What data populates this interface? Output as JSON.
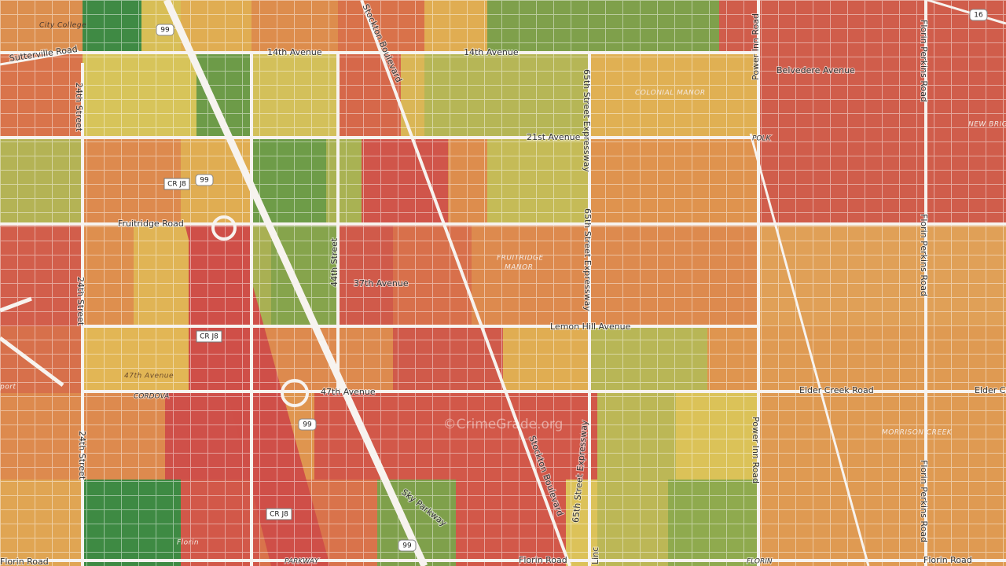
{
  "labels": {
    "city_college": "City College",
    "sutterville_road": "Sutterville Road",
    "fourteenth_ave_1": "14th Avenue",
    "fourteenth_ave_2": "14th Avenue",
    "twentyfourth_st_1": "24th Street",
    "twentyfourth_st_2": "24th Street",
    "twentyfourth_st_3": "24th Street",
    "stockton_blvd_1": "Stockton Boulevard",
    "stockton_blvd_2": "Stockton Boulevard",
    "belvedere_ave": "Belvedere Avenue",
    "power_inn_1": "Power Inn Road",
    "power_inn_2": "Power Inn Road",
    "florin_perkins_1": "Florin Perkins Road",
    "florin_perkins_2": "Florin Perkins Road",
    "florin_perkins_3": "Florin Perkins Road",
    "colonial_manor": "COLONIAL MANOR",
    "new_brig": "NEW BRIG",
    "polk": "POLK",
    "twentyfirst_ave": "21st Avenue",
    "sixtyfifth_1": "65th Street Expressway",
    "sixtyfifth_2": "65th Street Expressway",
    "sixtyfifth_3": "65th Street Expressway",
    "fruitridge_road": "Fruitridge Road",
    "fortyfourth_st": "44th Street",
    "thirtyseventh_ave": "37th Avenue",
    "fruitridge_manor_1": "FRUITRIDGE",
    "fruitridge_manor_2": "MANOR",
    "lemon_hill": "Lemon Hill Avenue",
    "fortyseventh_ave_1": "47th Avenue",
    "fortyseventh_ave_2": "47th Avenue",
    "cordova": "CORDOVA",
    "elder_creek_1": "Elder Creek Road",
    "elder_creek_2": "Elder Creek",
    "morrison_creek": "MORRISON CREEK",
    "watermark": "©CrimeGrade.org",
    "sky_parkway": "Sky Parkway",
    "florin_road_1": "Florin Road",
    "florin_road_2": "Florin Road",
    "florin_road_3": "Florin Road",
    "parkway": "PARKWAY",
    "florin_caps": "FLORIN",
    "florin_small": "Florin",
    "linc": "Linc",
    "port": "port",
    "hwy99_1": "99",
    "hwy99_2": "99",
    "hwy99_3": "99",
    "hwy99_4": "99",
    "hwy16": "16",
    "crj8_1": "CR J8",
    "crj8_2": "CR J8",
    "crj8_3": "CR J8"
  }
}
